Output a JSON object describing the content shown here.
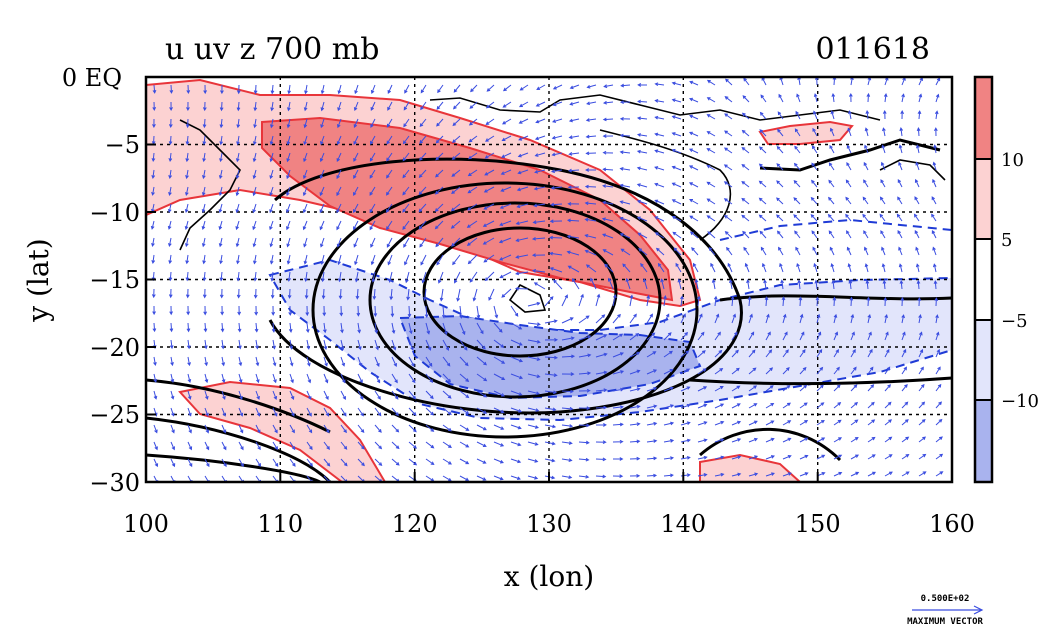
{
  "chart_data": {
    "type": "heatmap",
    "title": "u uv z 700 mb",
    "date_label": "011618",
    "xlabel": "x (lon)",
    "ylabel": "y (lat)",
    "xlim": [
      100,
      160
    ],
    "ylim": [
      -30,
      0
    ],
    "x_ticks": [
      100,
      110,
      120,
      130,
      140,
      150,
      160
    ],
    "y_ticks": [
      0,
      -5,
      -10,
      -15,
      -20,
      -25,
      -30
    ],
    "y_tick_labels": [
      "0 EQ",
      "−5",
      "−10",
      "−15",
      "−20",
      "−25",
      "−30"
    ],
    "colorbar": {
      "labels": [
        "10",
        "5",
        "−5",
        "−10"
      ],
      "bands": [
        {
          "from": 10,
          "to": 15,
          "color": "#f08383"
        },
        {
          "from": 5,
          "to": 10,
          "color": "#fcd2d2"
        },
        {
          "from": -5,
          "to": 5,
          "color": "#ffffff"
        },
        {
          "from": -10,
          "to": -5,
          "color": "#e2e5fb"
        },
        {
          "from": -15,
          "to": -10,
          "color": "#a9b3ee"
        }
      ]
    },
    "vector_label": "0.500E+02",
    "vector_caption": "MAXIMUM VECTOR",
    "colors": {
      "positive": "#e8353a",
      "negative": "#1f3bd6",
      "height": "#000000",
      "vector": "#3a4de0"
    }
  }
}
